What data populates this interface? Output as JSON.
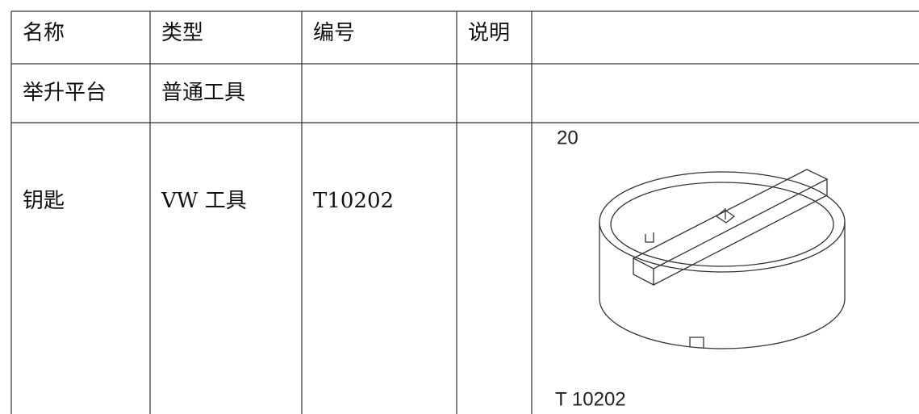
{
  "table": {
    "header": [
      "名称",
      "类型",
      "编号",
      "说明"
    ],
    "rows": [
      [
        "举升平台",
        "普通工具"
      ],
      [
        "钥匙",
        "VW 工具",
        "T10202"
      ]
    ]
  },
  "figure": {
    "number": "20",
    "caption": "T 10202"
  }
}
